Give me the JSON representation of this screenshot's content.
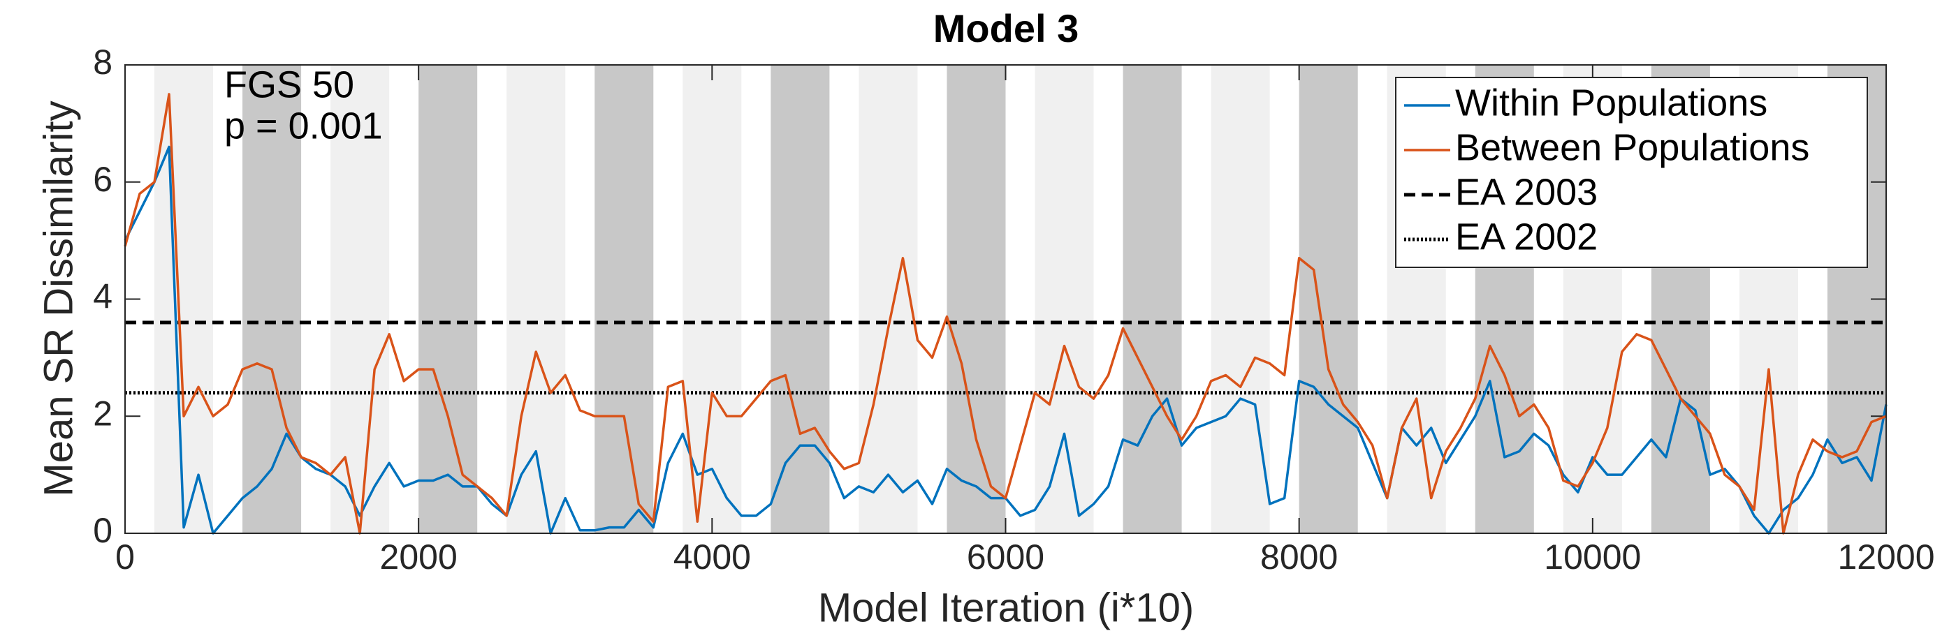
{
  "chart_data": {
    "type": "line",
    "title": "Model 3",
    "xlabel": "Model Iteration (i*10)",
    "ylabel": "Mean SR Dissimilarity",
    "annotations": [
      "FGS 50",
      "p = 0.001"
    ],
    "xlim": [
      0,
      12000
    ],
    "ylim": [
      0,
      8
    ],
    "xticks": [
      0,
      2000,
      4000,
      6000,
      8000,
      10000,
      12000
    ],
    "yticks": [
      0,
      2,
      4,
      6,
      8
    ],
    "legend": "upper right",
    "shaded_regions": [
      {
        "xlim": [
          200,
          600
        ],
        "color": "#f0f0f0"
      },
      {
        "xlim": [
          800,
          1200
        ],
        "color": "#c8c8c8"
      },
      {
        "xlim": [
          1400,
          1800
        ],
        "color": "#f0f0f0"
      },
      {
        "xlim": [
          2000,
          2400
        ],
        "color": "#c8c8c8"
      },
      {
        "xlim": [
          2600,
          3000
        ],
        "color": "#f0f0f0"
      },
      {
        "xlim": [
          3200,
          3600
        ],
        "color": "#c8c8c8"
      },
      {
        "xlim": [
          3800,
          4200
        ],
        "color": "#f0f0f0"
      },
      {
        "xlim": [
          4400,
          4800
        ],
        "color": "#c8c8c8"
      },
      {
        "xlim": [
          5000,
          5400
        ],
        "color": "#f0f0f0"
      },
      {
        "xlim": [
          5600,
          6000
        ],
        "color": "#c8c8c8"
      },
      {
        "xlim": [
          6200,
          6600
        ],
        "color": "#f0f0f0"
      },
      {
        "xlim": [
          6800,
          7200
        ],
        "color": "#c8c8c8"
      },
      {
        "xlim": [
          7400,
          7800
        ],
        "color": "#f0f0f0"
      },
      {
        "xlim": [
          8000,
          8400
        ],
        "color": "#c8c8c8"
      },
      {
        "xlim": [
          8600,
          9000
        ],
        "color": "#f0f0f0"
      },
      {
        "xlim": [
          9200,
          9600
        ],
        "color": "#c8c8c8"
      },
      {
        "xlim": [
          9800,
          10200
        ],
        "color": "#f0f0f0"
      },
      {
        "xlim": [
          10400,
          10800
        ],
        "color": "#c8c8c8"
      },
      {
        "xlim": [
          11000,
          11400
        ],
        "color": "#f0f0f0"
      },
      {
        "xlim": [
          11600,
          12000
        ],
        "color": "#c8c8c8"
      }
    ],
    "x": [
      0,
      100,
      200,
      300,
      400,
      500,
      600,
      700,
      800,
      900,
      1000,
      1100,
      1200,
      1300,
      1400,
      1500,
      1600,
      1700,
      1800,
      1900,
      2000,
      2100,
      2200,
      2300,
      2400,
      2500,
      2600,
      2700,
      2800,
      2900,
      3000,
      3100,
      3200,
      3300,
      3400,
      3500,
      3600,
      3700,
      3800,
      3900,
      4000,
      4100,
      4200,
      4300,
      4400,
      4500,
      4600,
      4700,
      4800,
      4900,
      5000,
      5100,
      5200,
      5300,
      5400,
      5500,
      5600,
      5700,
      5800,
      5900,
      6000,
      6100,
      6200,
      6300,
      6400,
      6500,
      6600,
      6700,
      6800,
      6900,
      7000,
      7100,
      7200,
      7300,
      7400,
      7500,
      7600,
      7700,
      7800,
      7900,
      8000,
      8100,
      8200,
      8300,
      8400,
      8500,
      8600,
      8700,
      8800,
      8900,
      9000,
      9100,
      9200,
      9300,
      9400,
      9500,
      9600,
      9700,
      9800,
      9900,
      10000,
      10100,
      10200,
      10300,
      10400,
      10500,
      10600,
      10700,
      10800,
      10900,
      11000,
      11100,
      11200,
      11300,
      11400,
      11500,
      11600,
      11700,
      11800,
      11900,
      12000
    ],
    "series": [
      {
        "name": "Within Populations",
        "color": "#0072bd",
        "values": [
          5.0,
          5.5,
          6.0,
          6.6,
          0.1,
          1.0,
          0,
          0.3,
          0.6,
          0.8,
          1.1,
          1.7,
          1.3,
          1.1,
          1.0,
          0.8,
          0.3,
          0.8,
          1.2,
          0.8,
          0.9,
          0.9,
          1.0,
          0.8,
          0.8,
          0.5,
          0.3,
          1.0,
          1.4,
          0,
          0.6,
          0.05,
          0.05,
          0.1,
          0.1,
          0.4,
          0.1,
          1.2,
          1.7,
          1.0,
          1.1,
          0.6,
          0.3,
          0.3,
          0.5,
          1.2,
          1.5,
          1.5,
          1.2,
          0.6,
          0.8,
          0.7,
          1.0,
          0.7,
          0.9,
          0.5,
          1.1,
          0.9,
          0.8,
          0.6,
          0.6,
          0.3,
          0.4,
          0.8,
          1.7,
          0.3,
          0.5,
          0.8,
          1.6,
          1.5,
          2.0,
          2.3,
          1.5,
          1.8,
          1.9,
          2.0,
          2.3,
          2.2,
          0.5,
          0.6,
          2.6,
          2.5,
          2.2,
          2.0,
          1.8,
          1.2,
          0.6,
          1.8,
          1.5,
          1.8,
          1.2,
          1.6,
          2.0,
          2.6,
          1.3,
          1.4,
          1.7,
          1.5,
          1.0,
          0.7,
          1.3,
          1.0,
          1.0,
          1.3,
          1.6,
          1.3,
          2.3,
          2.1,
          1.0,
          1.1,
          0.8,
          0.3,
          0,
          0.4,
          0.6,
          1.0,
          1.6,
          1.2,
          1.3,
          0.9,
          2.2
        ]
      },
      {
        "name": "Between Populations",
        "color": "#d95319",
        "values": [
          4.9,
          5.8,
          6.0,
          7.5,
          2.0,
          2.5,
          2.0,
          2.2,
          2.8,
          2.9,
          2.8,
          1.8,
          1.3,
          1.2,
          1.0,
          1.3,
          0,
          2.8,
          3.4,
          2.6,
          2.8,
          2.8,
          2.0,
          1.0,
          0.8,
          0.6,
          0.3,
          2.0,
          3.1,
          2.4,
          2.7,
          2.1,
          2.0,
          2.0,
          2.0,
          0.5,
          0.2,
          2.5,
          2.6,
          0.2,
          2.4,
          2.0,
          2.0,
          2.3,
          2.6,
          2.7,
          1.7,
          1.8,
          1.4,
          1.1,
          1.2,
          2.2,
          3.5,
          4.7,
          3.3,
          3.0,
          3.7,
          2.9,
          1.6,
          0.8,
          0.6,
          1.5,
          2.4,
          2.2,
          3.2,
          2.5,
          2.3,
          2.7,
          3.5,
          3.0,
          2.5,
          2.0,
          1.6,
          2.0,
          2.6,
          2.7,
          2.5,
          3.0,
          2.9,
          2.7,
          4.7,
          4.5,
          2.8,
          2.2,
          1.9,
          1.5,
          0.6,
          1.8,
          2.3,
          0.6,
          1.4,
          1.8,
          2.3,
          3.2,
          2.7,
          2.0,
          2.2,
          1.8,
          0.9,
          0.8,
          1.2,
          1.8,
          3.1,
          3.4,
          3.3,
          2.8,
          2.3,
          2.0,
          1.7,
          1.0,
          0.8,
          0.4,
          2.8,
          0,
          1.0,
          1.6,
          1.4,
          1.3,
          1.4,
          1.9,
          2.0
        ]
      }
    ],
    "reference_lines": [
      {
        "name": "EA 2003",
        "value": 3.6,
        "style": "dashed",
        "color": "#000000"
      },
      {
        "name": "EA 2002",
        "value": 2.4,
        "style": "dotted",
        "color": "#000000"
      }
    ]
  }
}
